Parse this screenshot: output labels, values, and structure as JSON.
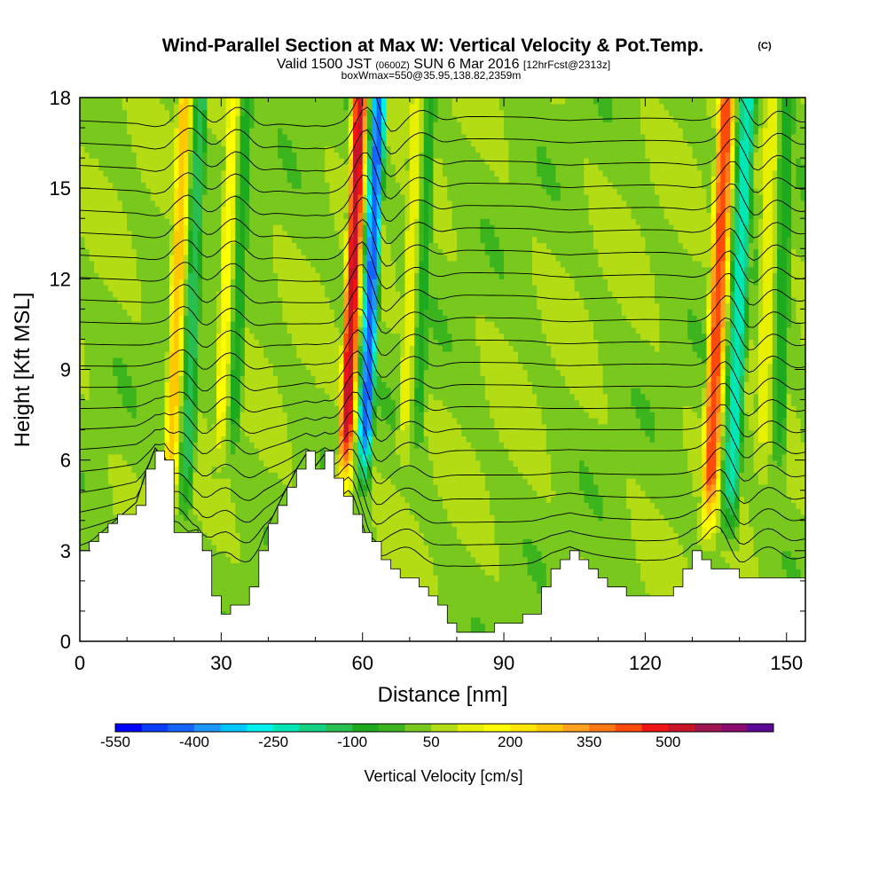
{
  "header": {
    "title": "Wind-Parallel Section at Max W: Vertical Velocity & Pot.Temp.",
    "copyright_mark": "(C)",
    "valid_prefix": "Valid 1500 JST",
    "valid_utc": "(0600Z)",
    "valid_date": "SUN 6 Mar 2016",
    "forecast": "[12hrFcst@2313z]",
    "box_info": "boxWmax=550@35.95,138.82,2359m"
  },
  "chart_data": {
    "type": "heatmap",
    "xlabel": "Distance [nm]",
    "ylabel": "Height [Kft MSL]",
    "xlim": [
      0,
      154
    ],
    "ylim": [
      0,
      18
    ],
    "x_ticks": [
      0,
      30,
      60,
      90,
      120,
      150
    ],
    "y_ticks": [
      0,
      3,
      6,
      9,
      12,
      15,
      18
    ],
    "colorbar": {
      "label": "Vertical Velocity [cm/s]",
      "tick_labels": [
        "-550",
        "-400",
        "-250",
        "-100",
        "50",
        "200",
        "350",
        "500"
      ],
      "min": -550,
      "max": 600,
      "step": 50,
      "colors": [
        "#0000ff",
        "#0a3cff",
        "#1464ff",
        "#1e96ff",
        "#00c8ff",
        "#00f0f0",
        "#00e6b4",
        "#14d282",
        "#28be50",
        "#1eaa1e",
        "#3cb41e",
        "#78c81e",
        "#b4dc14",
        "#e6f000",
        "#ffff00",
        "#ffe600",
        "#ffc800",
        "#ffa01e",
        "#ff7814",
        "#ff4b0a",
        "#f01414",
        "#c81428",
        "#a01450",
        "#8c0a6e",
        "#5a0a96"
      ]
    },
    "terrain_kft": [
      [
        0,
        3.0
      ],
      [
        3,
        3.4
      ],
      [
        6,
        3.8
      ],
      [
        9,
        4.2
      ],
      [
        12,
        4.6
      ],
      [
        14,
        5.6
      ],
      [
        16,
        6.4
      ],
      [
        18,
        6.0
      ],
      [
        20,
        3.6
      ],
      [
        22,
        3.6
      ],
      [
        25,
        3.7
      ],
      [
        28,
        1.5
      ],
      [
        30,
        1.0
      ],
      [
        33,
        1.1
      ],
      [
        36,
        1.8
      ],
      [
        39,
        3.5
      ],
      [
        43,
        4.8
      ],
      [
        46,
        5.7
      ],
      [
        48,
        6.2
      ],
      [
        50,
        5.8
      ],
      [
        52,
        6.2
      ],
      [
        55,
        5.0
      ],
      [
        57,
        4.5
      ],
      [
        59,
        3.6
      ],
      [
        61,
        3.3
      ],
      [
        63,
        3.0
      ],
      [
        67,
        2.3
      ],
      [
        70,
        2.0
      ],
      [
        74,
        1.6
      ],
      [
        78,
        0.5
      ],
      [
        82,
        0.3
      ],
      [
        88,
        0.5
      ],
      [
        92,
        0.6
      ],
      [
        96,
        1.0
      ],
      [
        100,
        2.3
      ],
      [
        104,
        2.9
      ],
      [
        106,
        2.6
      ],
      [
        109,
        2.2
      ],
      [
        112,
        1.9
      ],
      [
        116,
        1.6
      ],
      [
        120,
        1.4
      ],
      [
        124,
        1.5
      ],
      [
        127,
        2.0
      ],
      [
        130,
        2.9
      ],
      [
        133,
        2.6
      ],
      [
        136,
        2.4
      ],
      [
        140,
        2.2
      ],
      [
        146,
        2.0
      ],
      [
        154,
        2.0
      ]
    ],
    "bands": [
      {
        "x0": 17,
        "x1": 24,
        "base": 3.5,
        "peak": 300,
        "trough": -150,
        "tilt": 3.5
      },
      {
        "x0": 28,
        "x1": 34,
        "base": 5.5,
        "peak": 200,
        "trough": -100,
        "tilt": 3.0
      },
      {
        "x0": 54,
        "x1": 62,
        "base": 4.5,
        "peak": 550,
        "trough": -450,
        "tilt": 3.5
      },
      {
        "x0": 67,
        "x1": 73,
        "base": 5.5,
        "peak": 150,
        "trough": -80,
        "tilt": 3.0
      },
      {
        "x0": 131,
        "x1": 140,
        "base": 3.0,
        "peak": 450,
        "trough": -250,
        "tilt": 4.0
      },
      {
        "x0": 143,
        "x1": 150,
        "base": 5.0,
        "peak": 150,
        "trough": -100,
        "tilt": 2.0
      }
    ],
    "isentropes_kft": [
      3.3,
      4.1,
      4.9,
      5.7,
      6.5,
      7.3,
      8.0,
      8.7,
      9.4,
      10.1,
      10.8,
      11.5,
      12.2,
      12.9,
      13.6,
      14.3,
      15.0,
      15.7,
      16.4,
      17.1,
      17.8
    ]
  }
}
